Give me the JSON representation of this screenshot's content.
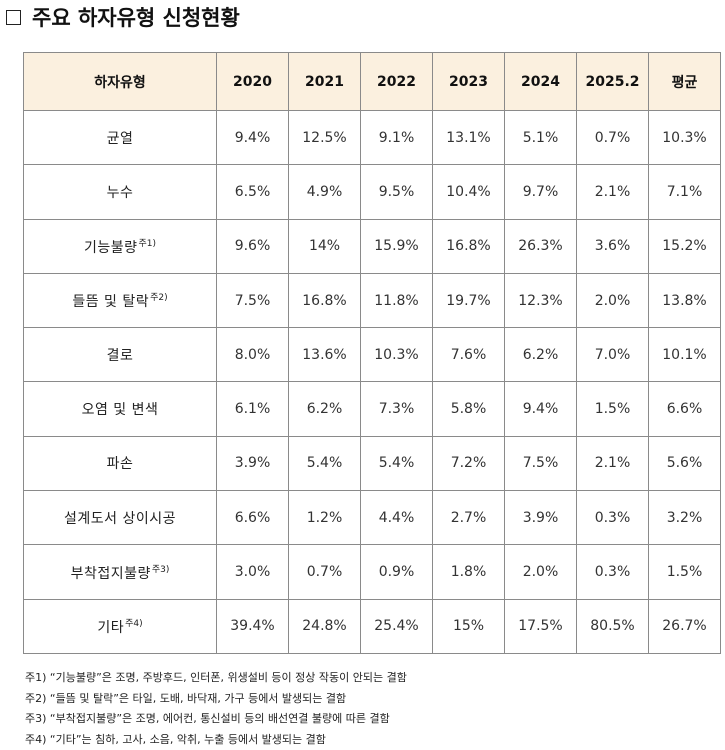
{
  "title": "주요 하자유형 신청현황",
  "table": {
    "headers": [
      "하자유형",
      "2020",
      "2021",
      "2022",
      "2023",
      "2024",
      "2025.2",
      "평균"
    ],
    "rows": [
      {
        "category": "균열",
        "note": "",
        "values": [
          "9.4%",
          "12.5%",
          "9.1%",
          "13.1%",
          "5.1%",
          "0.7%",
          "10.3%"
        ]
      },
      {
        "category": "누수",
        "note": "",
        "values": [
          "6.5%",
          "4.9%",
          "9.5%",
          "10.4%",
          "9.7%",
          "2.1%",
          "7.1%"
        ]
      },
      {
        "category": "기능불량",
        "note": "주1)",
        "values": [
          "9.6%",
          "14%",
          "15.9%",
          "16.8%",
          "26.3%",
          "3.6%",
          "15.2%"
        ]
      },
      {
        "category": "들뜸 및 탈락",
        "note": "주2)",
        "values": [
          "7.5%",
          "16.8%",
          "11.8%",
          "19.7%",
          "12.3%",
          "2.0%",
          "13.8%"
        ]
      },
      {
        "category": "결로",
        "note": "",
        "values": [
          "8.0%",
          "13.6%",
          "10.3%",
          "7.6%",
          "6.2%",
          "7.0%",
          "10.1%"
        ]
      },
      {
        "category": "오염 및 변색",
        "note": "",
        "values": [
          "6.1%",
          "6.2%",
          "7.3%",
          "5.8%",
          "9.4%",
          "1.5%",
          "6.6%"
        ]
      },
      {
        "category": "파손",
        "note": "",
        "values": [
          "3.9%",
          "5.4%",
          "5.4%",
          "7.2%",
          "7.5%",
          "2.1%",
          "5.6%"
        ]
      },
      {
        "category": "설계도서 상이시공",
        "note": "",
        "values": [
          "6.6%",
          "1.2%",
          "4.4%",
          "2.7%",
          "3.9%",
          "0.3%",
          "3.2%"
        ]
      },
      {
        "category": "부착접지불량",
        "note": "주3)",
        "values": [
          "3.0%",
          "0.7%",
          "0.9%",
          "1.8%",
          "2.0%",
          "0.3%",
          "1.5%"
        ]
      },
      {
        "category": "기타",
        "note": "주4)",
        "values": [
          "39.4%",
          "24.8%",
          "25.4%",
          "15%",
          "17.5%",
          "80.5%",
          "26.7%"
        ]
      }
    ]
  },
  "notes": [
    "주1) “기능불량”은 조명, 주방후드, 인터폰, 위생설비 등이 정상 작동이 안되는 결함",
    "주2) “들뜸 및 탈락”은 타일, 도배, 바닥재, 가구 등에서 발생되는 결함",
    "주3) “부착접지불량”은 조명, 에어컨, 통신설비 등의 배선연결 불량에 따른 결함",
    "주4) “기타”는 침하, 고사, 소음, 악취, 누출 등에서 발생되는 결함"
  ]
}
